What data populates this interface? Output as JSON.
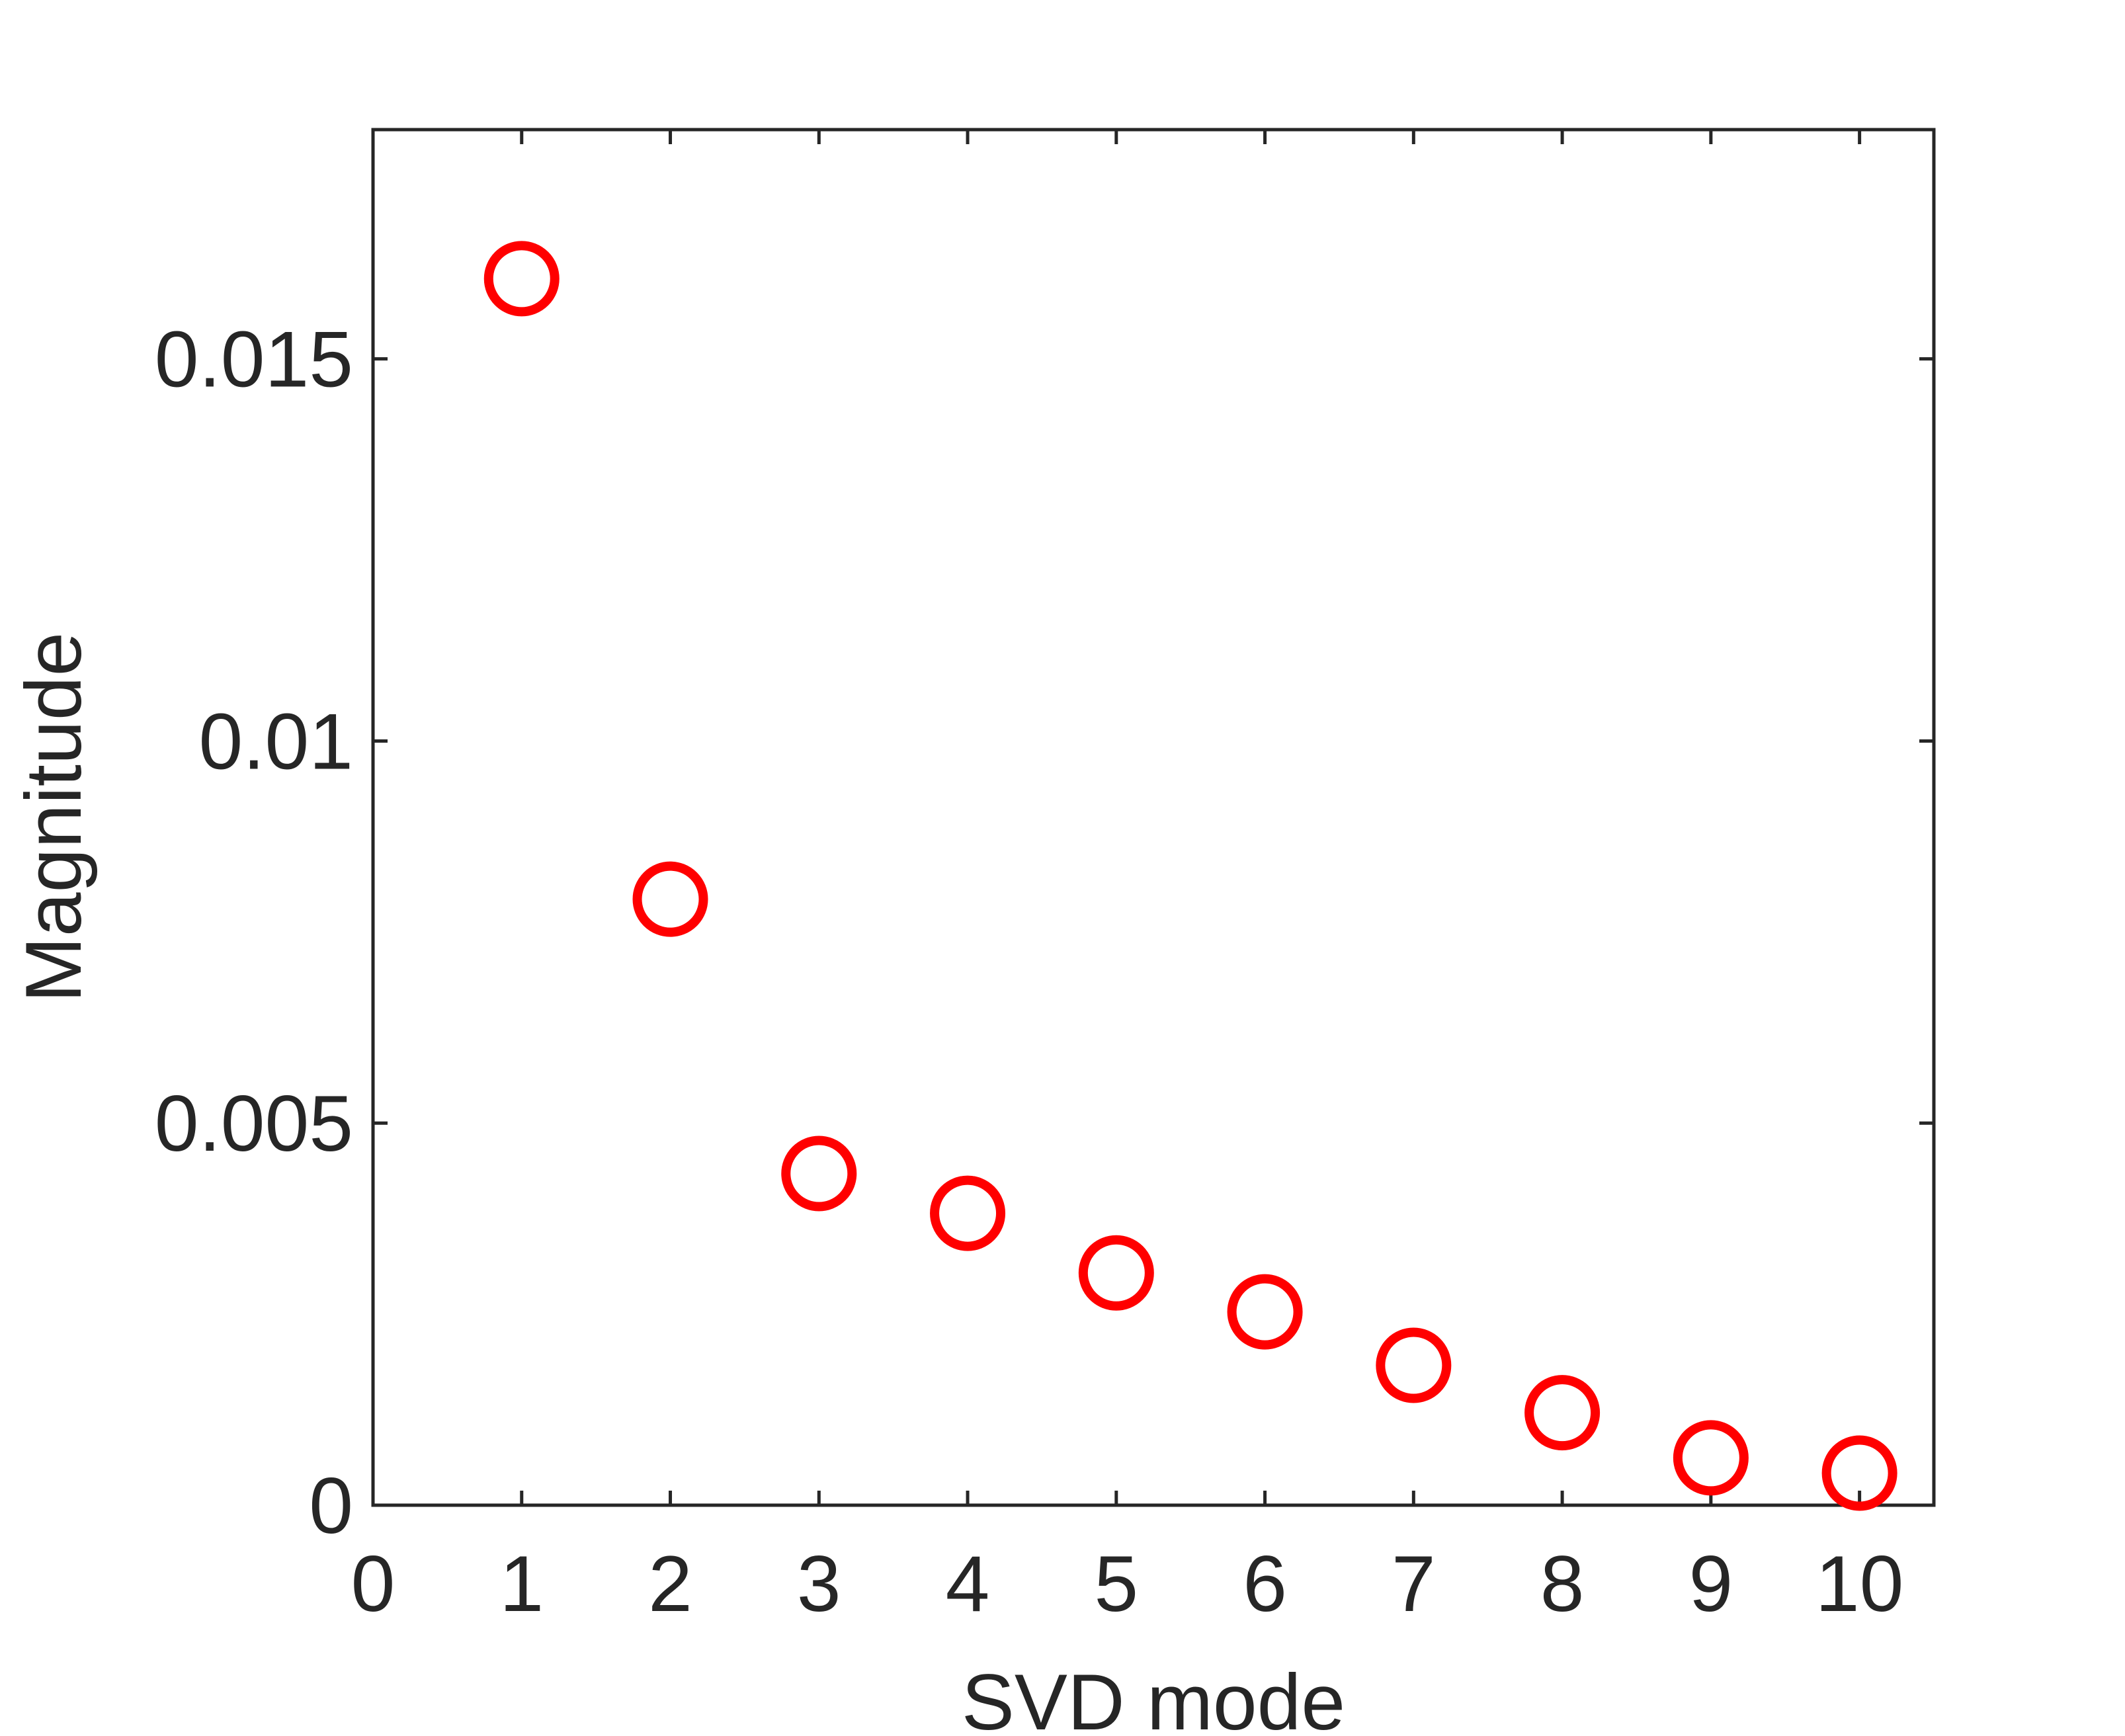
{
  "chart_data": {
    "type": "scatter",
    "xlabel": "SVD mode",
    "ylabel": "Magnitude",
    "xlim": [
      0,
      10.5
    ],
    "ylim": [
      0,
      0.018
    ],
    "x_ticks": [
      0,
      1,
      2,
      3,
      4,
      5,
      6,
      7,
      8,
      9,
      10
    ],
    "x_tick_labels": [
      "0",
      "1",
      "2",
      "3",
      "4",
      "5",
      "6",
      "7",
      "8",
      "9",
      "10"
    ],
    "y_ticks": [
      0,
      0.005,
      0.01,
      0.015
    ],
    "y_tick_labels": [
      "0",
      "0.005",
      "0.01",
      "0.015"
    ],
    "grid": false,
    "marker": "open-circle",
    "marker_color": "#ff0000",
    "series": [
      {
        "x": [
          1,
          2,
          3,
          4,
          5,
          6,
          7,
          8,
          9,
          10
        ],
        "values": [
          0.01605,
          0.00793,
          0.00434,
          0.00382,
          0.00304,
          0.00253,
          0.00183,
          0.00121,
          0.00062,
          0.00042
        ]
      }
    ]
  }
}
